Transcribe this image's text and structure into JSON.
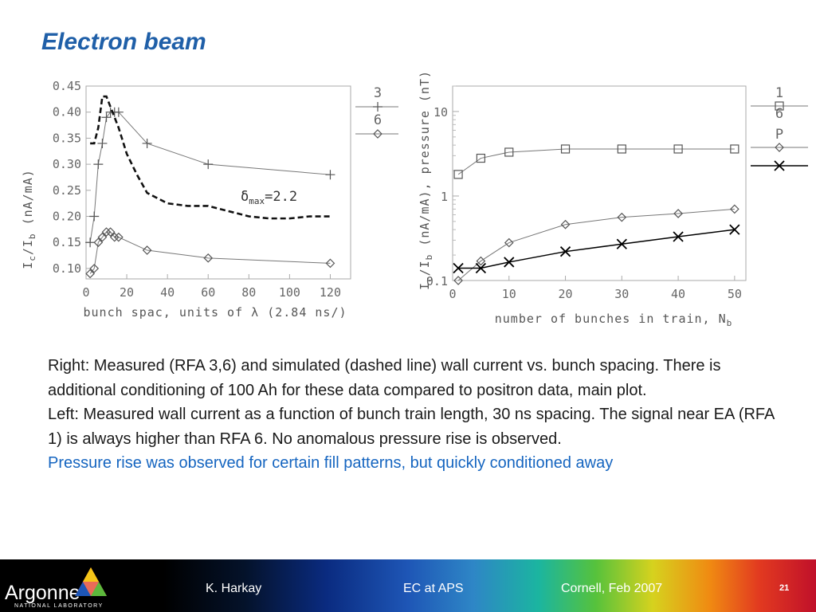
{
  "slide": {
    "title": "Electron beam",
    "paragraphs": [
      "Right: Measured (RFA 3,6) and simulated (dashed line) wall current vs. bunch spacing. There is additional conditioning of 100 Ah for these data compared to positron data, main plot.",
      "Left: Measured wall current as a function of bunch train length, 30 ns spacing. The signal near EA (RFA 1) is always higher than RFA 6. No anomalous pressure rise is observed."
    ],
    "highlight": "Pressure rise was observed for certain fill patterns, but quickly conditioned away"
  },
  "footer": {
    "logo_word": "Argonne",
    "logo_sub": "NATIONAL LABORATORY",
    "author": "K. Harkay",
    "event": "EC at APS",
    "venue": "Cornell, Feb 2007",
    "page": "21"
  },
  "colors": {
    "title": "#1f5fa8",
    "highlight": "#1565c0",
    "series_gray": "#666666",
    "series_dark": "#000000"
  },
  "chart_data": [
    {
      "type": "line",
      "xlabel": "bunch spac, units of λ (2.84 ns/)",
      "ylabel": "I_c/I_b  (nA/mA)",
      "xlim": [
        0,
        130
      ],
      "ylim": [
        0.08,
        0.45
      ],
      "x_ticks": [
        "0",
        "20",
        "40",
        "60",
        "80",
        "100",
        "120"
      ],
      "y_ticks": [
        "0.10",
        "0.15",
        "0.20",
        "0.25",
        "0.30",
        "0.35",
        "0.40",
        "0.45"
      ],
      "annotation": "δmax=2.2",
      "legend_position": "right",
      "series": [
        {
          "name": "3",
          "marker": "plus",
          "style": "solid",
          "x": [
            2,
            4,
            6,
            8,
            10,
            12,
            14,
            16,
            30,
            60,
            120
          ],
          "y": [
            0.15,
            0.2,
            0.3,
            0.34,
            0.39,
            0.4,
            0.4,
            0.4,
            0.34,
            0.3,
            0.28
          ]
        },
        {
          "name": "6",
          "marker": "diamond",
          "style": "solid",
          "x": [
            2,
            4,
            6,
            8,
            10,
            12,
            14,
            16,
            30,
            60,
            120
          ],
          "y": [
            0.09,
            0.1,
            0.15,
            0.16,
            0.17,
            0.17,
            0.16,
            0.16,
            0.135,
            0.12,
            0.11
          ]
        },
        {
          "marker": "none",
          "style": "dashed",
          "x": [
            2,
            4,
            6,
            8,
            10,
            12,
            16,
            20,
            25,
            30,
            40,
            50,
            60,
            70,
            80,
            90,
            100,
            110,
            120
          ],
          "y": [
            0.34,
            0.34,
            0.37,
            0.43,
            0.43,
            0.41,
            0.37,
            0.32,
            0.28,
            0.245,
            0.225,
            0.22,
            0.22,
            0.21,
            0.2,
            0.196,
            0.196,
            0.2,
            0.2
          ]
        }
      ]
    },
    {
      "type": "line",
      "xlabel": "number of bunches in train, N_b",
      "ylabel": "I_c/I_b (nA/mA), pressure (nT)",
      "xlim": [
        0,
        52
      ],
      "ylim": [
        0.1,
        20
      ],
      "y_scale": "log",
      "x_ticks": [
        "0",
        "10",
        "20",
        "30",
        "40",
        "50"
      ],
      "y_ticks": [
        "0.1",
        "1",
        "10"
      ],
      "legend_position": "right",
      "series": [
        {
          "name": "1",
          "marker": "square",
          "style": "solid",
          "x": [
            1,
            5,
            10,
            20,
            30,
            40,
            50
          ],
          "y": [
            1.8,
            2.8,
            3.3,
            3.6,
            3.6,
            3.6,
            3.6
          ]
        },
        {
          "name": "6",
          "marker": "diamond",
          "style": "solid",
          "x": [
            1,
            5,
            10,
            20,
            30,
            40,
            50
          ],
          "y": [
            0.1,
            0.17,
            0.28,
            0.46,
            0.56,
            0.62,
            0.7
          ]
        },
        {
          "name": "P",
          "marker": "x",
          "style": "solid-dark",
          "x": [
            1,
            5,
            10,
            20,
            30,
            40,
            50
          ],
          "y": [
            0.14,
            0.14,
            0.165,
            0.22,
            0.27,
            0.33,
            0.4
          ]
        }
      ]
    }
  ]
}
